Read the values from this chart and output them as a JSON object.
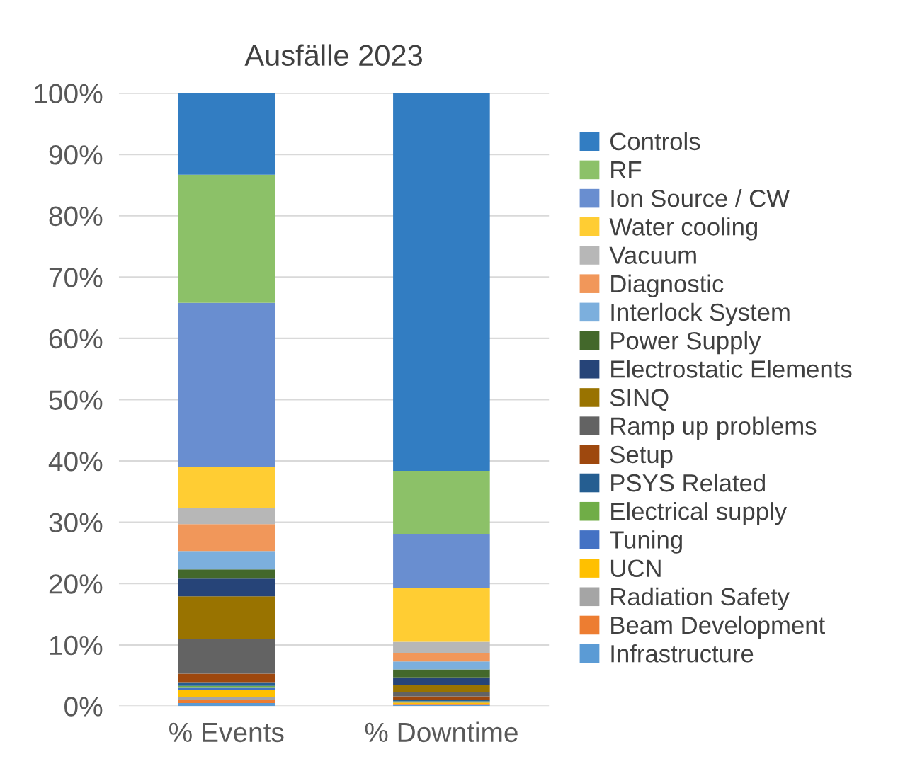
{
  "chart_data": {
    "type": "bar",
    "title": "Ausfälle 2023",
    "categories": [
      "% Events",
      "% Downtime"
    ],
    "stacked": true,
    "ylim": [
      0,
      100
    ],
    "yticks": [
      {
        "value": 0,
        "label": "0%"
      },
      {
        "value": 10,
        "label": "10%"
      },
      {
        "value": 20,
        "label": "20%"
      },
      {
        "value": 30,
        "label": "30%"
      },
      {
        "value": 40,
        "label": "40%"
      },
      {
        "value": 50,
        "label": "50%"
      },
      {
        "value": 60,
        "label": "60%"
      },
      {
        "value": 70,
        "label": "70%"
      },
      {
        "value": 80,
        "label": "80%"
      },
      {
        "value": 90,
        "label": "90%"
      },
      {
        "value": 100,
        "label": "100%"
      }
    ],
    "grid": "y",
    "legend": "right",
    "series": [
      {
        "name": "Infrastructure",
        "color": "#5b9bd5",
        "values": [
          0.5,
          0.2
        ]
      },
      {
        "name": "Beam Development",
        "color": "#ed7d31",
        "values": [
          0.5,
          0.1
        ]
      },
      {
        "name": "Radiation Safety",
        "color": "#a5a5a5",
        "values": [
          0.5,
          0.1
        ]
      },
      {
        "name": "UCN",
        "color": "#ffc000",
        "values": [
          1.2,
          0.2
        ]
      },
      {
        "name": "Tuning",
        "color": "#4472c4",
        "values": [
          0.3,
          0.1
        ]
      },
      {
        "name": "Electrical supply",
        "color": "#70ad47",
        "values": [
          0.3,
          0.1
        ]
      },
      {
        "name": "PSYS Related",
        "color": "#255e91",
        "values": [
          0.6,
          0.2
        ]
      },
      {
        "name": "Setup",
        "color": "#9e480e",
        "values": [
          1.4,
          0.6
        ]
      },
      {
        "name": "Ramp up problems",
        "color": "#636363",
        "values": [
          5.6,
          0.7
        ]
      },
      {
        "name": "SINQ",
        "color": "#997300",
        "values": [
          7.0,
          1.2
        ]
      },
      {
        "name": "Electrostatic Elements",
        "color": "#264478",
        "values": [
          2.9,
          1.2
        ]
      },
      {
        "name": "Power Supply",
        "color": "#43682b",
        "values": [
          1.5,
          1.3
        ]
      },
      {
        "name": "Interlock System",
        "color": "#7cafdd",
        "values": [
          3.0,
          1.3
        ]
      },
      {
        "name": "Diagnostic",
        "color": "#f1975a",
        "values": [
          4.4,
          1.4
        ]
      },
      {
        "name": "Vacuum",
        "color": "#b7b7b7",
        "values": [
          2.6,
          1.8
        ]
      },
      {
        "name": "Water cooling",
        "color": "#ffcd33",
        "values": [
          6.7,
          8.8
        ]
      },
      {
        "name": "Ion Source / CW",
        "color": "#698ed0",
        "values": [
          26.8,
          8.8
        ]
      },
      {
        "name": "RF",
        "color": "#8cc168",
        "values": [
          20.9,
          10.3
        ]
      },
      {
        "name": "Controls",
        "color": "#327dc2",
        "values": [
          13.3,
          61.8
        ]
      }
    ]
  }
}
